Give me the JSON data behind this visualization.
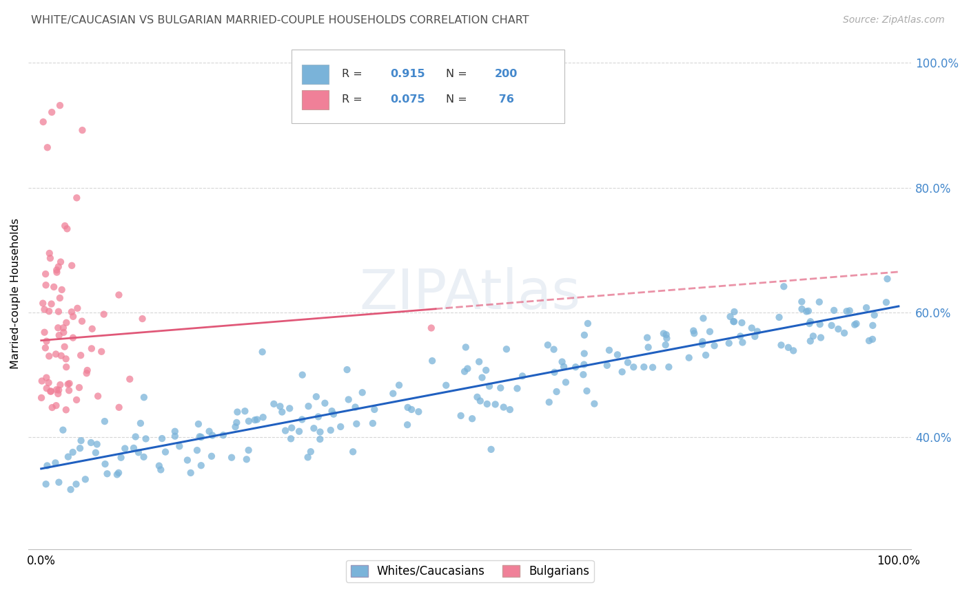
{
  "title": "WHITE/CAUCASIAN VS BULGARIAN MARRIED-COUPLE HOUSEHOLDS CORRELATION CHART",
  "source": "Source: ZipAtlas.com",
  "ylabel": "Married-couple Households",
  "watermark": "ZIPAtlas",
  "blue_scatter_color": "#7ab3d9",
  "pink_scatter_color": "#f08098",
  "blue_line_color": "#2060c0",
  "pink_line_color": "#e05878",
  "right_axis_tick_color": "#4488cc",
  "background_color": "#ffffff",
  "grid_color": "#cccccc",
  "title_color": "#505050",
  "seed": 42,
  "blue_n": 200,
  "pink_n": 76,
  "figsize": [
    14.06,
    8.92
  ],
  "dpi": 100,
  "ylim_low": 0.22,
  "ylim_high": 1.04,
  "blue_intercept": 0.345,
  "blue_slope": 0.265,
  "blue_noise_std": 0.032,
  "pink_intercept": 0.555,
  "pink_slope": 0.11,
  "pink_noise_std": 0.085,
  "legend_R1": "0.915",
  "legend_N1": "200",
  "legend_R2": "0.075",
  "legend_N2": "76"
}
